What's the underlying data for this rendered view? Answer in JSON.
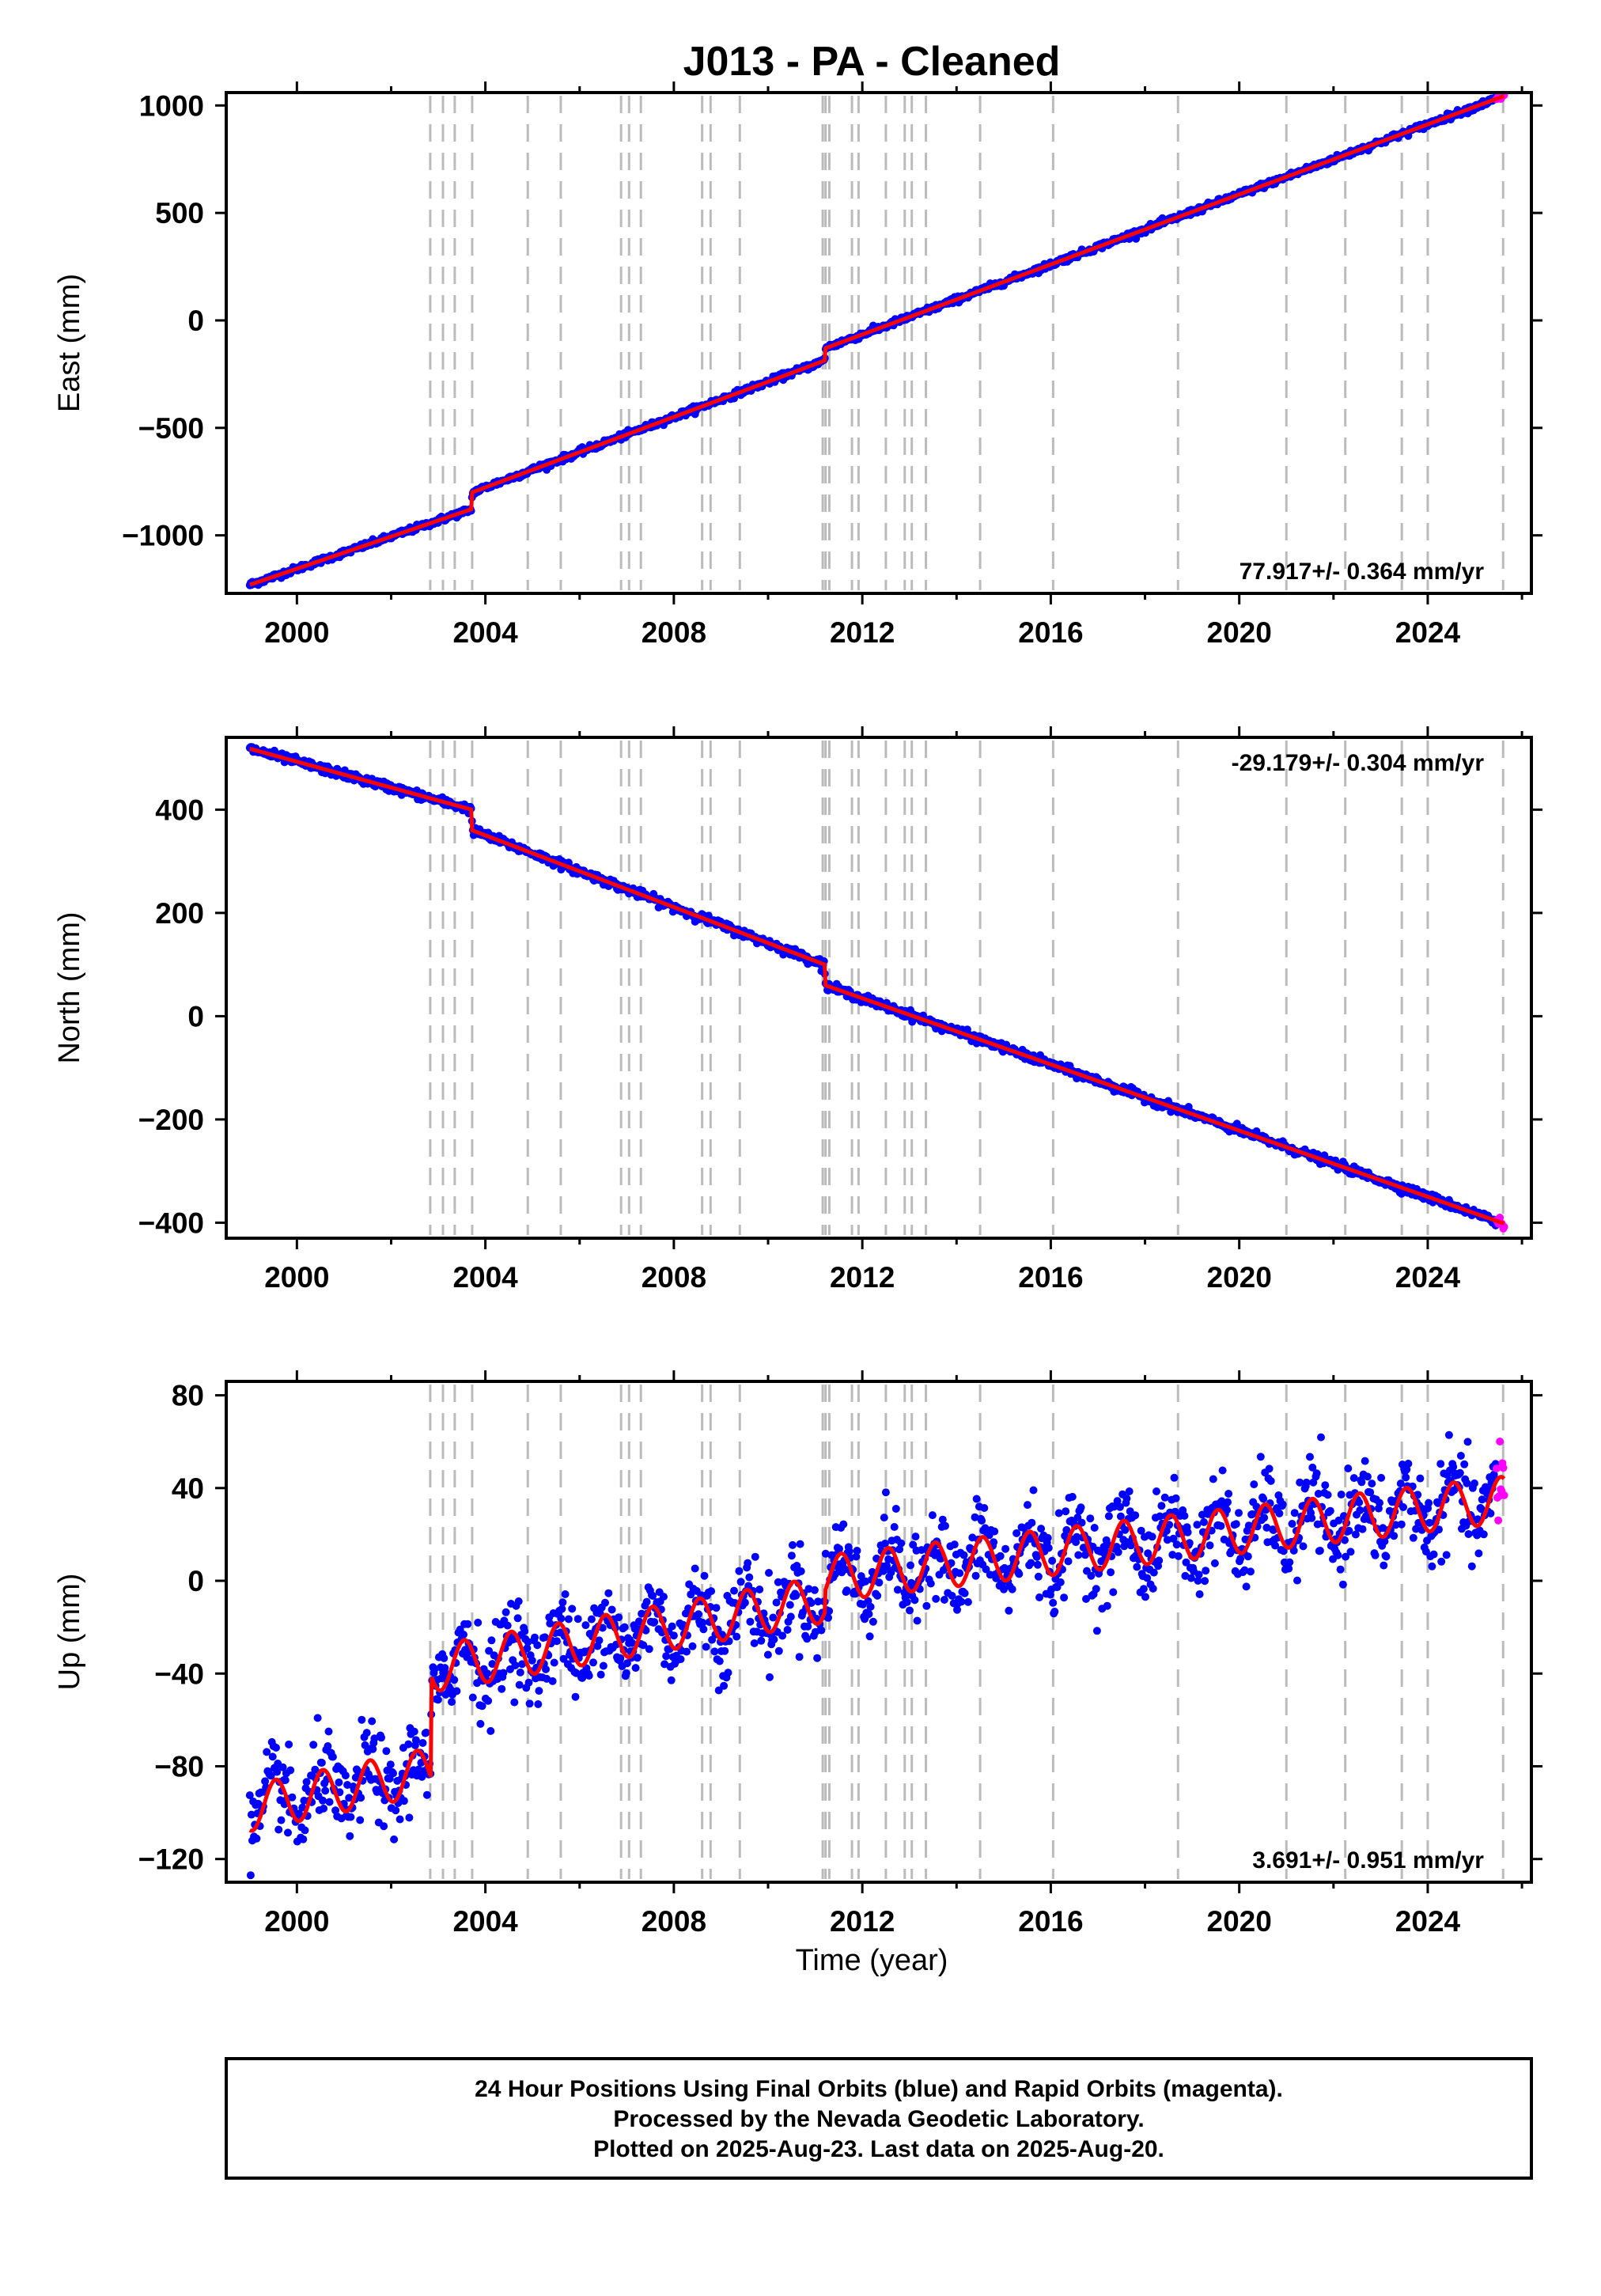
{
  "title": "J013  - PA - Cleaned",
  "x_label": "Time (year)",
  "footer": {
    "line1": "24 Hour Positions Using Final Orbits (blue) and Rapid Orbits (magenta).",
    "line2": "Processed by the Nevada Geodetic Laboratory.",
    "line3": "Plotted on 2025-Aug-23. Last data on 2025-Aug-20."
  },
  "colors": {
    "final_orbits": "#0000ff",
    "rapid_orbits": "#ff00ff",
    "model": "#ff0000",
    "steps": "#bbbbbb"
  },
  "chart_data": [
    {
      "type": "scatter",
      "name": "East",
      "ylabel": "East (mm)",
      "xlim": [
        1998.5,
        2026.2
      ],
      "ylim": [
        -1270,
        1060
      ],
      "xticks": [
        2000,
        2004,
        2008,
        2012,
        2016,
        2020,
        2024
      ],
      "yticks": [
        -1000,
        -500,
        0,
        500,
        1000
      ],
      "ytick_labels": [
        "−1000",
        "−500",
        "0",
        "500",
        "1000"
      ],
      "rate_label": "77.917+/- 0.364 mm/yr",
      "rate_position": "bottom-right",
      "model": {
        "x": [
          1999.0,
          2003.71,
          2003.72,
          2011.2,
          2011.21,
          2025.63
        ],
        "y": [
          -1230,
          -878,
          -800,
          -187,
          -130,
          1045
        ]
      },
      "noise_mm": 7,
      "seasonal_mm": 0
    },
    {
      "type": "scatter",
      "name": "North",
      "ylabel": "North (mm)",
      "xlim": [
        1998.5,
        2026.2
      ],
      "ylim": [
        -430,
        540
      ],
      "xticks": [
        2000,
        2004,
        2008,
        2012,
        2016,
        2020,
        2024
      ],
      "yticks": [
        -400,
        -200,
        0,
        200,
        400
      ],
      "ytick_labels": [
        "−400",
        "−200",
        "0",
        "200",
        "400"
      ],
      "rate_label": "-29.179+/- 0.304 mm/yr",
      "rate_position": "top-right",
      "model": {
        "x": [
          1999.0,
          2003.71,
          2003.72,
          2011.2,
          2011.21,
          2025.63
        ],
        "y": [
          518,
          400,
          360,
          100,
          60,
          -402
        ]
      },
      "noise_mm": 4,
      "seasonal_mm": 0
    },
    {
      "type": "scatter",
      "name": "Up",
      "ylabel": "Up (mm)",
      "xlim": [
        1998.5,
        2026.2
      ],
      "ylim": [
        -130,
        86
      ],
      "xticks": [
        2000,
        2004,
        2008,
        2012,
        2016,
        2020,
        2024
      ],
      "yticks": [
        -120,
        -80,
        -40,
        0,
        40,
        80
      ],
      "ytick_labels": [
        "−120",
        "−80",
        "−40",
        "0",
        "40",
        "80"
      ],
      "rate_label": "3.691+/- 0.951 mm/yr",
      "rate_position": "bottom-right",
      "model": {
        "x": [
          1999.0,
          2002.85,
          2002.86,
          2011.2,
          2011.21,
          2025.63
        ],
        "y": [
          -98,
          -82,
          -38,
          -8,
          1,
          35
        ]
      },
      "noise_mm": 9,
      "seasonal_mm": 10
    }
  ],
  "step_epochs": [
    2002.83,
    2003.1,
    2003.35,
    2003.72,
    2004.9,
    2005.6,
    2006.88,
    2007.05,
    2007.3,
    2008.6,
    2008.78,
    2009.4,
    2011.16,
    2011.22,
    2011.3,
    2011.78,
    2011.92,
    2012.5,
    2012.9,
    2013.05,
    2013.35,
    2014.5,
    2016.05,
    2018.7,
    2021.0,
    2022.25,
    2023.45,
    2024.0,
    2025.6
  ],
  "rapid_segment": [
    2025.45,
    2025.63
  ]
}
